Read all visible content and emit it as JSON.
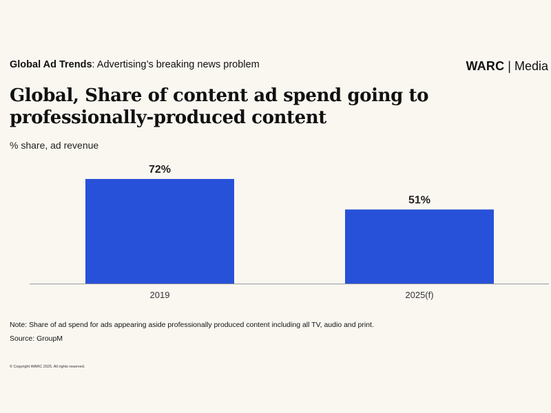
{
  "header": {
    "kicker_bold": "Global Ad Trends",
    "kicker_rest": ": Advertising’s breaking news problem",
    "logo_brand": "WARC",
    "logo_separator": "|",
    "logo_sub": "Media"
  },
  "title": "Global, Share of content ad spend going to professionally-produced content",
  "subtitle": "% share, ad revenue",
  "footer": {
    "note": "Note: Share of ad spend for ads appearing aside professionally produced content including all TV, audio and print.",
    "source": "Source: GroupM",
    "copyright": "© Copyright WARC 2025. All rights reserved."
  },
  "colors": {
    "bar": "#2751d8",
    "axis": "#9a9a9a",
    "background": "#faf7f1"
  },
  "chart_data": {
    "type": "bar",
    "categories": [
      "2019",
      "2025(f)"
    ],
    "values": [
      72,
      51
    ],
    "value_labels": [
      "72%",
      "51%"
    ],
    "ylim": [
      0,
      72
    ],
    "grid": false,
    "legend": "none"
  }
}
